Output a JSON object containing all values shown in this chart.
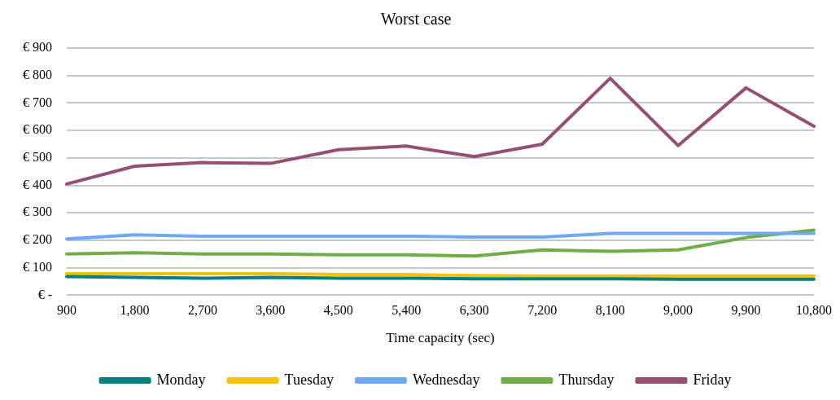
{
  "chart_data": {
    "type": "line",
    "title": "Worst case",
    "xlabel": "Time capacity (sec)",
    "categories": [
      "900",
      "1,800",
      "2,700",
      "3,600",
      "4,500",
      "5,400",
      "6,300",
      "7,200",
      "8,100",
      "9,000",
      "9,900",
      "10,800"
    ],
    "series": [
      {
        "name": "Monday",
        "color": "#00807f",
        "values": [
          68,
          65,
          62,
          65,
          62,
          62,
          60,
          60,
          60,
          58,
          58,
          58
        ]
      },
      {
        "name": "Tuesday",
        "color": "#ffc000",
        "values": [
          78,
          78,
          78,
          78,
          75,
          75,
          72,
          70,
          70,
          70,
          70,
          70
        ]
      },
      {
        "name": "Wednesday",
        "color": "#6fa8f5",
        "values": [
          205,
          220,
          215,
          215,
          215,
          215,
          212,
          212,
          225,
          225,
          225,
          225
        ]
      },
      {
        "name": "Thursday",
        "color": "#70ad47",
        "values": [
          150,
          155,
          150,
          150,
          147,
          147,
          143,
          165,
          160,
          165,
          210,
          237
        ]
      },
      {
        "name": "Friday",
        "color": "#954f72",
        "values": [
          405,
          470,
          483,
          480,
          530,
          543,
          505,
          550,
          790,
          545,
          755,
          615
        ]
      }
    ],
    "ylim": [
      0,
      900
    ],
    "yticks": [
      {
        "value": 0,
        "label": "€ -"
      },
      {
        "value": 100,
        "label": "€ 100"
      },
      {
        "value": 200,
        "label": "€ 200"
      },
      {
        "value": 300,
        "label": "€ 300"
      },
      {
        "value": 400,
        "label": "€ 400"
      },
      {
        "value": 500,
        "label": "€ 500"
      },
      {
        "value": 600,
        "label": "€ 600"
      },
      {
        "value": 700,
        "label": "€ 700"
      },
      {
        "value": 800,
        "label": "€ 800"
      },
      {
        "value": 900,
        "label": "€ 900"
      }
    ],
    "grid": "y",
    "legend": "bottom",
    "marker": "none",
    "line_style": "solid"
  }
}
